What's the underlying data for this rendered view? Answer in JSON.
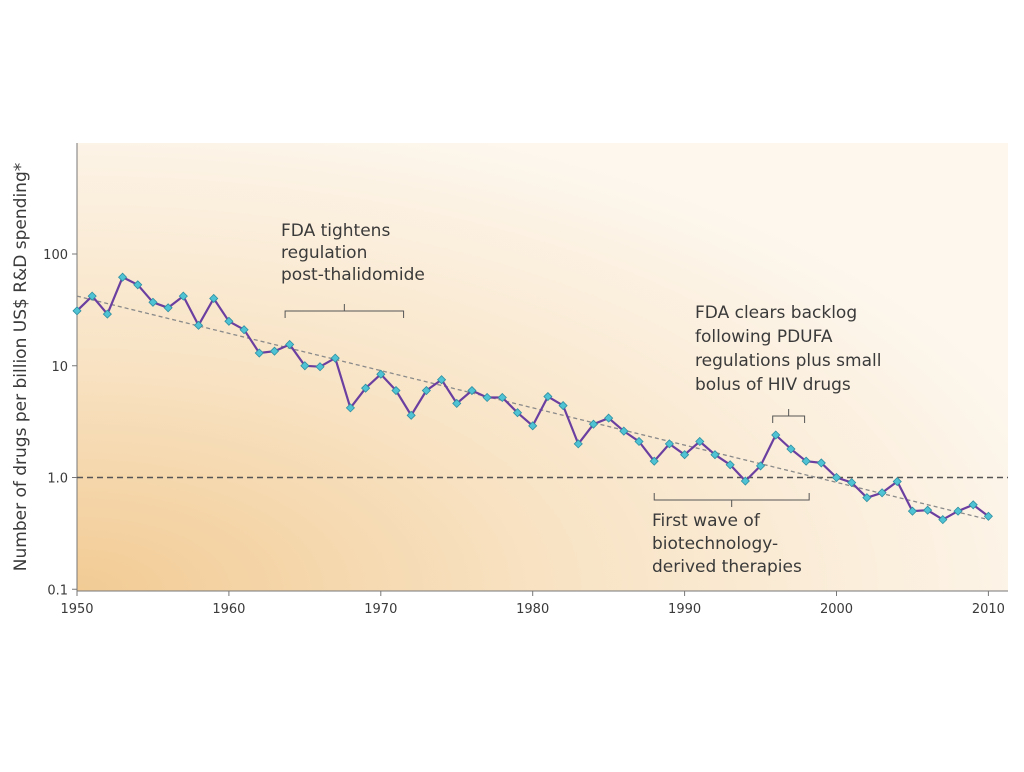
{
  "chart_data": {
    "type": "line",
    "title": "",
    "xlabel": "",
    "ylabel": "Number of drugs per billion US$ R&D spending*",
    "yscale": "log",
    "xlim": [
      1950,
      2011
    ],
    "ylim": [
      0.1,
      1000
    ],
    "x_ticks": [
      1950,
      1960,
      1970,
      1980,
      1990,
      2000,
      2010
    ],
    "y_ticks": [
      {
        "value": 0.1,
        "label": "0.1"
      },
      {
        "value": 1,
        "label": "1.0"
      },
      {
        "value": 10,
        "label": "10"
      },
      {
        "value": 100,
        "label": "100"
      }
    ],
    "grid": false,
    "colors": {
      "line": "#6a3fa0",
      "marker": "#4fc3d4",
      "marker_edge": "#2f8fa0",
      "trend": "#8a8a8a",
      "reference": "#555555",
      "background_warm": "#f3cf9c",
      "background_light": "#fdf6ec"
    },
    "series": [
      {
        "points": [
          [
            1950,
            31
          ],
          [
            1951,
            42
          ],
          [
            1952,
            29
          ],
          [
            1953,
            62
          ],
          [
            1954,
            53
          ],
          [
            1955,
            37
          ],
          [
            1956,
            33
          ],
          [
            1957,
            42
          ],
          [
            1958,
            23
          ],
          [
            1959,
            40
          ],
          [
            1960,
            25
          ],
          [
            1961,
            21
          ],
          [
            1962,
            13
          ],
          [
            1963,
            13.5
          ],
          [
            1964,
            15.5
          ],
          [
            1965,
            10
          ],
          [
            1966,
            9.8
          ],
          [
            1967,
            11.7
          ],
          [
            1968,
            4.2
          ],
          [
            1969,
            6.3
          ],
          [
            1970,
            8.4
          ],
          [
            1971,
            6.0
          ],
          [
            1972,
            3.6
          ],
          [
            1973,
            6.0
          ],
          [
            1974,
            7.5
          ],
          [
            1975,
            4.6
          ],
          [
            1976,
            6.0
          ],
          [
            1977,
            5.2
          ],
          [
            1978,
            5.2
          ],
          [
            1979,
            3.8
          ],
          [
            1980,
            2.9
          ],
          [
            1981,
            5.3
          ],
          [
            1982,
            4.4
          ],
          [
            1983,
            2.0
          ],
          [
            1984,
            3.0
          ],
          [
            1985,
            3.4
          ],
          [
            1986,
            2.6
          ],
          [
            1987,
            2.1
          ],
          [
            1988,
            1.4
          ],
          [
            1989,
            2.0
          ],
          [
            1990,
            1.6
          ],
          [
            1991,
            2.1
          ],
          [
            1992,
            1.6
          ],
          [
            1993,
            1.3
          ],
          [
            1994,
            0.93
          ],
          [
            1995,
            1.27
          ],
          [
            1996,
            2.4
          ],
          [
            1997,
            1.8
          ],
          [
            1998,
            1.4
          ],
          [
            1999,
            1.35
          ],
          [
            2000,
            1.0
          ],
          [
            2001,
            0.9
          ],
          [
            2002,
            0.66
          ],
          [
            2003,
            0.73
          ],
          [
            2004,
            0.92
          ],
          [
            2005,
            0.5
          ],
          [
            2006,
            0.51
          ],
          [
            2007,
            0.42
          ],
          [
            2008,
            0.5
          ],
          [
            2009,
            0.57
          ],
          [
            2010,
            0.45
          ]
        ]
      }
    ],
    "trendline": {
      "start": [
        1950,
        42
      ],
      "end": [
        2010,
        0.42
      ],
      "style": "dashed"
    },
    "reference_line": {
      "y": 1.0,
      "style": "dashed"
    },
    "annotations": [
      {
        "lines": [
          "FDA tightens",
          "regulation",
          "post-thalidomide"
        ],
        "bracket": {
          "x_start": 1963.7,
          "x_end": 1971.5,
          "orientation": "down"
        }
      },
      {
        "lines": [
          "FDA clears backlog",
          "following PDUFA",
          "regulations plus small",
          "bolus of HIV drugs"
        ],
        "bracket": {
          "x_start": 1995.8,
          "x_end": 1997.9,
          "orientation": "down"
        }
      },
      {
        "lines": [
          "First wave of",
          "biotechnology-",
          "derived therapies"
        ],
        "bracket": {
          "x_start": 1988,
          "x_end": 1998.2,
          "orientation": "up"
        }
      }
    ]
  }
}
